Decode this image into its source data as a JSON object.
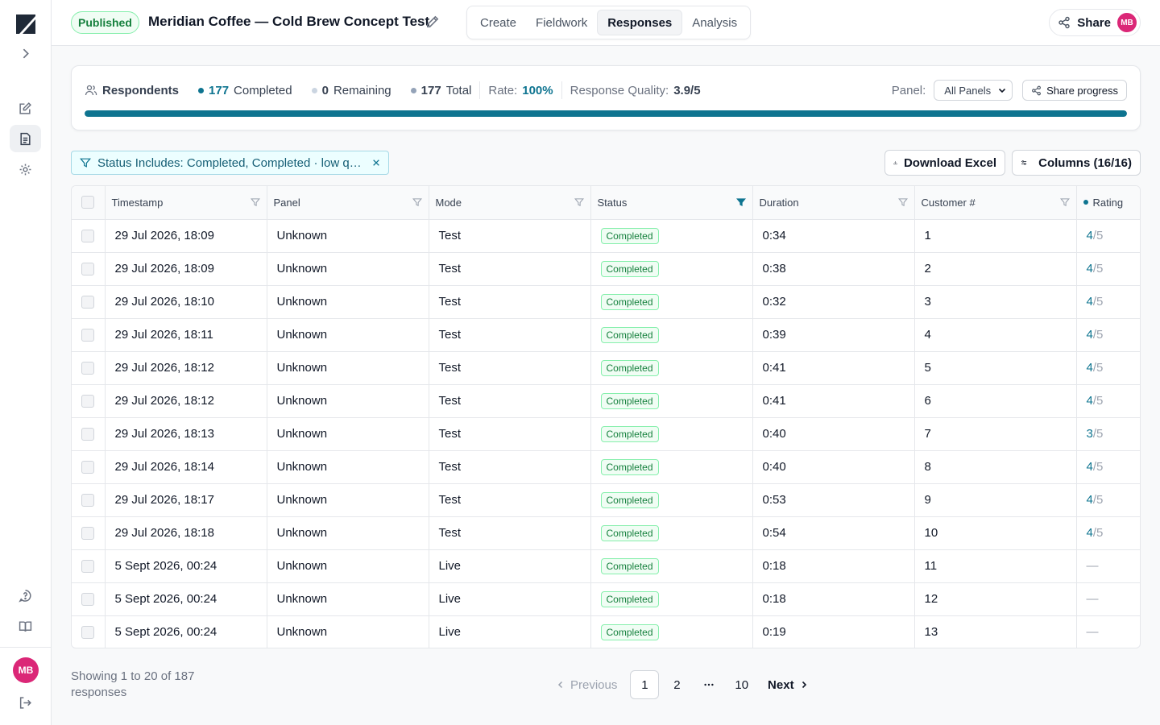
{
  "app": {
    "logo": "slash-logo"
  },
  "sidebar": {
    "items": [
      {
        "icon": "expand-chevron-icon"
      },
      {
        "icon": "edit-icon"
      },
      {
        "icon": "document-icon",
        "active": true
      },
      {
        "icon": "gear-icon"
      },
      {
        "icon": "help-chat-icon"
      },
      {
        "icon": "book-icon"
      }
    ],
    "avatar_initials": "MB",
    "logout_icon": "logout-icon"
  },
  "header": {
    "status_badge": "Published",
    "title": "Meridian Coffee — Cold Brew Concept Test",
    "tabs": [
      "Create",
      "Fieldwork",
      "Responses",
      "Analysis"
    ],
    "active_tab": "Responses",
    "share_label": "Share",
    "avatar_initials": "MB"
  },
  "progress": {
    "respondents_label": "Respondents",
    "completed_count": "177",
    "completed_label": "Completed",
    "remaining_count": "0",
    "remaining_label": "Remaining",
    "total_count": "177",
    "total_label": "Total",
    "rate_label": "Rate:",
    "rate_value": "100%",
    "quality_label": "Response Quality:",
    "quality_value": "3.9/5",
    "panel_label": "Panel:",
    "panel_selected": "All Panels",
    "share_progress_label": "Share progress",
    "fill_fraction": 1.0,
    "colors": {
      "completed": "#0e7490",
      "remaining": "#cbd5e1",
      "total": "#94a3b8"
    }
  },
  "filter": {
    "chip_text": "Status Includes: Completed, Completed · low qu...",
    "download_label": "Download Excel",
    "columns_label": "Columns (16/16)"
  },
  "table": {
    "headers": [
      "Timestamp",
      "Panel",
      "Mode",
      "Status",
      "Duration",
      "Customer #",
      "Rating"
    ],
    "rows": [
      {
        "timestamp": "29 Jul 2026, 18:09",
        "panel": "Unknown",
        "mode": "Test",
        "status": "Completed",
        "duration": "0:34",
        "customer": "1",
        "rating": "4",
        "rating_den": "/5"
      },
      {
        "timestamp": "29 Jul 2026, 18:09",
        "panel": "Unknown",
        "mode": "Test",
        "status": "Completed",
        "duration": "0:38",
        "customer": "2",
        "rating": "4",
        "rating_den": "/5"
      },
      {
        "timestamp": "29 Jul 2026, 18:10",
        "panel": "Unknown",
        "mode": "Test",
        "status": "Completed",
        "duration": "0:32",
        "customer": "3",
        "rating": "4",
        "rating_den": "/5"
      },
      {
        "timestamp": "29 Jul 2026, 18:11",
        "panel": "Unknown",
        "mode": "Test",
        "status": "Completed",
        "duration": "0:39",
        "customer": "4",
        "rating": "4",
        "rating_den": "/5"
      },
      {
        "timestamp": "29 Jul 2026, 18:12",
        "panel": "Unknown",
        "mode": "Test",
        "status": "Completed",
        "duration": "0:41",
        "customer": "5",
        "rating": "4",
        "rating_den": "/5"
      },
      {
        "timestamp": "29 Jul 2026, 18:12",
        "panel": "Unknown",
        "mode": "Test",
        "status": "Completed",
        "duration": "0:41",
        "customer": "6",
        "rating": "4",
        "rating_den": "/5"
      },
      {
        "timestamp": "29 Jul 2026, 18:13",
        "panel": "Unknown",
        "mode": "Test",
        "status": "Completed",
        "duration": "0:40",
        "customer": "7",
        "rating": "3",
        "rating_den": "/5"
      },
      {
        "timestamp": "29 Jul 2026, 18:14",
        "panel": "Unknown",
        "mode": "Test",
        "status": "Completed",
        "duration": "0:40",
        "customer": "8",
        "rating": "4",
        "rating_den": "/5"
      },
      {
        "timestamp": "29 Jul 2026, 18:17",
        "panel": "Unknown",
        "mode": "Test",
        "status": "Completed",
        "duration": "0:53",
        "customer": "9",
        "rating": "4",
        "rating_den": "/5"
      },
      {
        "timestamp": "29 Jul 2026, 18:18",
        "panel": "Unknown",
        "mode": "Test",
        "status": "Completed",
        "duration": "0:54",
        "customer": "10",
        "rating": "4",
        "rating_den": "/5"
      },
      {
        "timestamp": "5 Sept 2026, 00:24",
        "panel": "Unknown",
        "mode": "Live",
        "status": "Completed",
        "duration": "0:18",
        "customer": "11",
        "rating": "—",
        "rating_den": ""
      },
      {
        "timestamp": "5 Sept 2026, 00:24",
        "panel": "Unknown",
        "mode": "Live",
        "status": "Completed",
        "duration": "0:18",
        "customer": "12",
        "rating": "—",
        "rating_den": ""
      },
      {
        "timestamp": "5 Sept 2026, 00:24",
        "panel": "Unknown",
        "mode": "Live",
        "status": "Completed",
        "duration": "0:19",
        "customer": "13",
        "rating": "—",
        "rating_den": ""
      }
    ]
  },
  "pagination": {
    "showing": "Showing 1 to 20 of 187 responses",
    "previous": "Previous",
    "pages": [
      "1",
      "2",
      "...",
      "10"
    ],
    "current": "1",
    "next": "Next"
  }
}
